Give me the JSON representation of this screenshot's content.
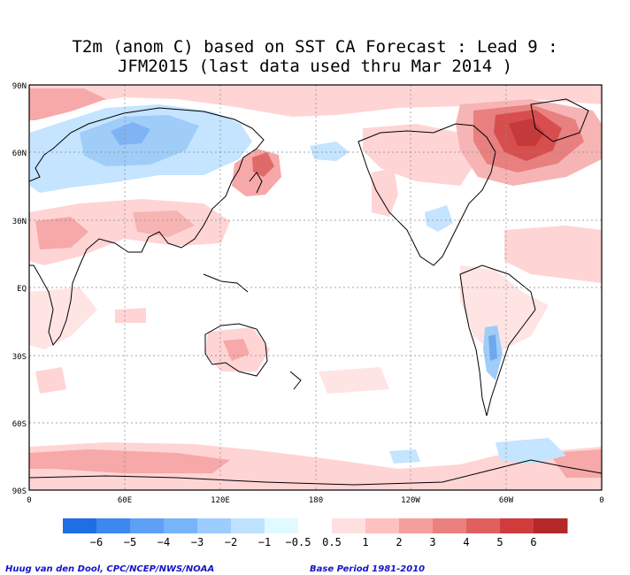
{
  "title_line1": "T2m (anom C) based on SST CA Forecast : Lead 9 :",
  "title_line2": "JFM2015 (last data used thru Mar 2014 )",
  "lat_labels": [
    "90N",
    "60N",
    "30N",
    "EQ",
    "30S",
    "60S",
    "90S"
  ],
  "lon_labels": [
    "0",
    "60E",
    "120E",
    "180",
    "120W",
    "60W",
    "0"
  ],
  "colorbar": {
    "colors": [
      "#1e6ee6",
      "#3c87f0",
      "#5ea0f5",
      "#78b4fa",
      "#9ccdff",
      "#bfe2ff",
      "#e0fbff",
      "#ffffff",
      "#ffe0e0",
      "#ffc0c0",
      "#f59f9f",
      "#ec8080",
      "#e06060",
      "#d03c3c",
      "#b42828"
    ],
    "labels": [
      "−6",
      "−5",
      "−4",
      "−3",
      "−2",
      "−1",
      "−0.5",
      "0.5",
      "1",
      "2",
      "3",
      "4",
      "5",
      "6"
    ]
  },
  "credit_left": "Huug van den Dool, CPC/NCEP/NWS/NOAA",
  "credit_right": "Base Period 1981-2010"
}
